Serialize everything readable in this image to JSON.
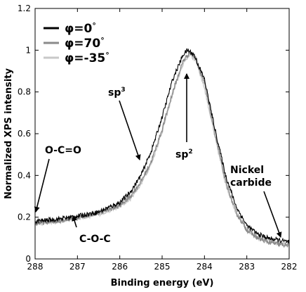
{
  "chart_data": {
    "type": "line",
    "xlabel": "Binding energy (eV)",
    "ylabel": "Normalized XPS intensity",
    "xlim": [
      288,
      282
    ],
    "ylim": [
      0,
      1.2
    ],
    "x_reversed": true,
    "xticks": [
      "288",
      "287",
      "286",
      "285",
      "284",
      "283",
      "282"
    ],
    "yticks": [
      "0",
      "0.2",
      "0.4",
      "0.6",
      "0.8",
      "1",
      "1.2"
    ],
    "grid": false,
    "legend_position": "top-left",
    "series": [
      {
        "name": "φ=0°",
        "legend_label": "φ=0",
        "legend_deg": "°",
        "color": "#000000",
        "points": [
          [
            288.0,
            0.18
          ],
          [
            287.5,
            0.19
          ],
          [
            287.0,
            0.205
          ],
          [
            286.5,
            0.225
          ],
          [
            286.0,
            0.27
          ],
          [
            285.75,
            0.32
          ],
          [
            285.5,
            0.4
          ],
          [
            285.25,
            0.52
          ],
          [
            285.0,
            0.68
          ],
          [
            284.75,
            0.86
          ],
          [
            284.5,
            0.98
          ],
          [
            284.4,
            1.0
          ],
          [
            284.25,
            0.98
          ],
          [
            284.0,
            0.86
          ],
          [
            283.75,
            0.62
          ],
          [
            283.5,
            0.4
          ],
          [
            283.25,
            0.25
          ],
          [
            283.0,
            0.16
          ],
          [
            282.75,
            0.12
          ],
          [
            282.5,
            0.1
          ],
          [
            282.25,
            0.09
          ],
          [
            282.0,
            0.08
          ]
        ]
      },
      {
        "name": "φ=70°",
        "legend_label": "φ=70",
        "legend_deg": "°",
        "color": "#8a8a8a",
        "points": [
          [
            288.0,
            0.17
          ],
          [
            287.5,
            0.18
          ],
          [
            287.0,
            0.2
          ],
          [
            286.5,
            0.22
          ],
          [
            286.0,
            0.255
          ],
          [
            285.75,
            0.3
          ],
          [
            285.5,
            0.37
          ],
          [
            285.25,
            0.47
          ],
          [
            285.0,
            0.62
          ],
          [
            284.75,
            0.8
          ],
          [
            284.5,
            0.95
          ],
          [
            284.35,
            0.99
          ],
          [
            284.2,
            0.96
          ],
          [
            284.0,
            0.84
          ],
          [
            283.75,
            0.6
          ],
          [
            283.5,
            0.37
          ],
          [
            283.25,
            0.22
          ],
          [
            283.0,
            0.14
          ],
          [
            282.75,
            0.1
          ],
          [
            282.5,
            0.08
          ],
          [
            282.25,
            0.07
          ],
          [
            282.0,
            0.065
          ]
        ]
      },
      {
        "name": "φ=-35°",
        "legend_label": "φ=-35",
        "legend_deg": "°",
        "color": "#c8c8c8",
        "points": [
          [
            288.0,
            0.17
          ],
          [
            287.5,
            0.18
          ],
          [
            287.0,
            0.195
          ],
          [
            286.5,
            0.215
          ],
          [
            286.0,
            0.25
          ],
          [
            285.75,
            0.29
          ],
          [
            285.5,
            0.36
          ],
          [
            285.25,
            0.46
          ],
          [
            285.0,
            0.61
          ],
          [
            284.75,
            0.79
          ],
          [
            284.5,
            0.94
          ],
          [
            284.35,
            0.98
          ],
          [
            284.2,
            0.95
          ],
          [
            284.0,
            0.82
          ],
          [
            283.75,
            0.58
          ],
          [
            283.5,
            0.36
          ],
          [
            283.25,
            0.22
          ],
          [
            283.0,
            0.14
          ],
          [
            282.75,
            0.105
          ],
          [
            282.5,
            0.085
          ],
          [
            282.25,
            0.075
          ],
          [
            282.0,
            0.07
          ]
        ]
      }
    ],
    "annotations": [
      {
        "id": "sp3",
        "base": "sp",
        "sup": "3",
        "target": [
          285.55,
          0.62
        ]
      },
      {
        "id": "sp2",
        "base": "sp",
        "sup": "2",
        "target": [
          284.35,
          0.88
        ]
      },
      {
        "id": "ocoo",
        "text": "O-C=O",
        "target": [
          287.98,
          0.2
        ]
      },
      {
        "id": "coc",
        "text": "C-O-C",
        "target": [
          286.55,
          0.22
        ]
      },
      {
        "id": "nickel1",
        "text": "Nickel",
        "target": [
          282.2,
          0.1
        ]
      },
      {
        "id": "nickel2",
        "text": "carbide"
      }
    ]
  }
}
